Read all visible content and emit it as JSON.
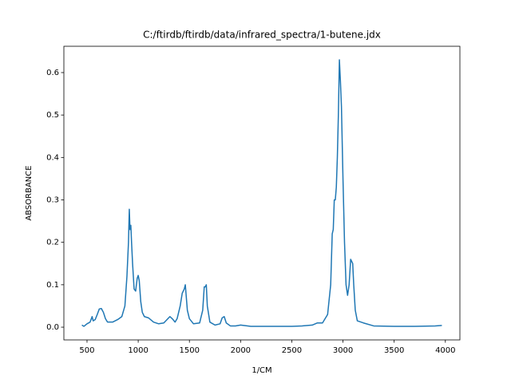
{
  "chart_data": {
    "type": "line",
    "title": "C:/ftirdb/ftirdb/data/infrared_spectra/1-butene.jdx",
    "x_label": "1/CM",
    "y_label": "ABSORBANCE",
    "xlim": [
      274,
      4142
    ],
    "ylim": [
      -0.03,
      0.662
    ],
    "xticks": [
      500,
      1000,
      1500,
      2000,
      2500,
      3000,
      3500,
      4000
    ],
    "yticks": [
      {
        "value": 0,
        "label": "0.0"
      },
      {
        "value": 0.1,
        "label": "0.1"
      },
      {
        "value": 0.2,
        "label": "0.2"
      },
      {
        "value": 0.3,
        "label": "0.3"
      },
      {
        "value": 0.4,
        "label": "0.4"
      },
      {
        "value": 0.5,
        "label": "0.5"
      },
      {
        "value": 0.6,
        "label": "0.6"
      }
    ],
    "x": [
      450,
      470,
      500,
      530,
      550,
      560,
      580,
      600,
      620,
      640,
      660,
      680,
      700,
      750,
      800,
      840,
      870,
      890,
      905,
      913,
      920,
      928,
      935,
      945,
      960,
      975,
      990,
      1000,
      1010,
      1025,
      1040,
      1060,
      1100,
      1150,
      1200,
      1250,
      1290,
      1310,
      1340,
      1360,
      1380,
      1410,
      1430,
      1450,
      1460,
      1470,
      1480,
      1500,
      1540,
      1600,
      1630,
      1645,
      1655,
      1665,
      1675,
      1700,
      1750,
      1800,
      1820,
      1840,
      1860,
      1900,
      1950,
      2000,
      2100,
      2300,
      2500,
      2600,
      2700,
      2750,
      2800,
      2850,
      2880,
      2895,
      2905,
      2915,
      2925,
      2935,
      2945,
      2955,
      2965,
      2975,
      2985,
      3000,
      3015,
      3030,
      3045,
      3060,
      3075,
      3085,
      3095,
      3105,
      3120,
      3140,
      3200,
      3300,
      3500,
      3700,
      3900,
      3966
    ],
    "series": [
      {
        "color": "#1f77b4",
        "values": [
          0.005,
          0.002,
          0.008,
          0.012,
          0.025,
          0.015,
          0.018,
          0.03,
          0.043,
          0.044,
          0.035,
          0.02,
          0.012,
          0.012,
          0.018,
          0.025,
          0.05,
          0.12,
          0.2,
          0.278,
          0.23,
          0.24,
          0.2,
          0.15,
          0.09,
          0.085,
          0.115,
          0.122,
          0.11,
          0.06,
          0.035,
          0.025,
          0.022,
          0.012,
          0.008,
          0.01,
          0.02,
          0.025,
          0.018,
          0.012,
          0.02,
          0.05,
          0.08,
          0.09,
          0.1,
          0.07,
          0.04,
          0.02,
          0.008,
          0.01,
          0.04,
          0.095,
          0.095,
          0.1,
          0.05,
          0.012,
          0.005,
          0.008,
          0.022,
          0.025,
          0.01,
          0.003,
          0.003,
          0.005,
          0.002,
          0.002,
          0.002,
          0.003,
          0.005,
          0.01,
          0.01,
          0.03,
          0.1,
          0.22,
          0.23,
          0.3,
          0.3,
          0.33,
          0.4,
          0.5,
          0.63,
          0.58,
          0.52,
          0.35,
          0.2,
          0.1,
          0.075,
          0.1,
          0.16,
          0.155,
          0.15,
          0.1,
          0.04,
          0.015,
          0.01,
          0.003,
          0.002,
          0.002,
          0.003,
          0.004
        ]
      }
    ]
  }
}
